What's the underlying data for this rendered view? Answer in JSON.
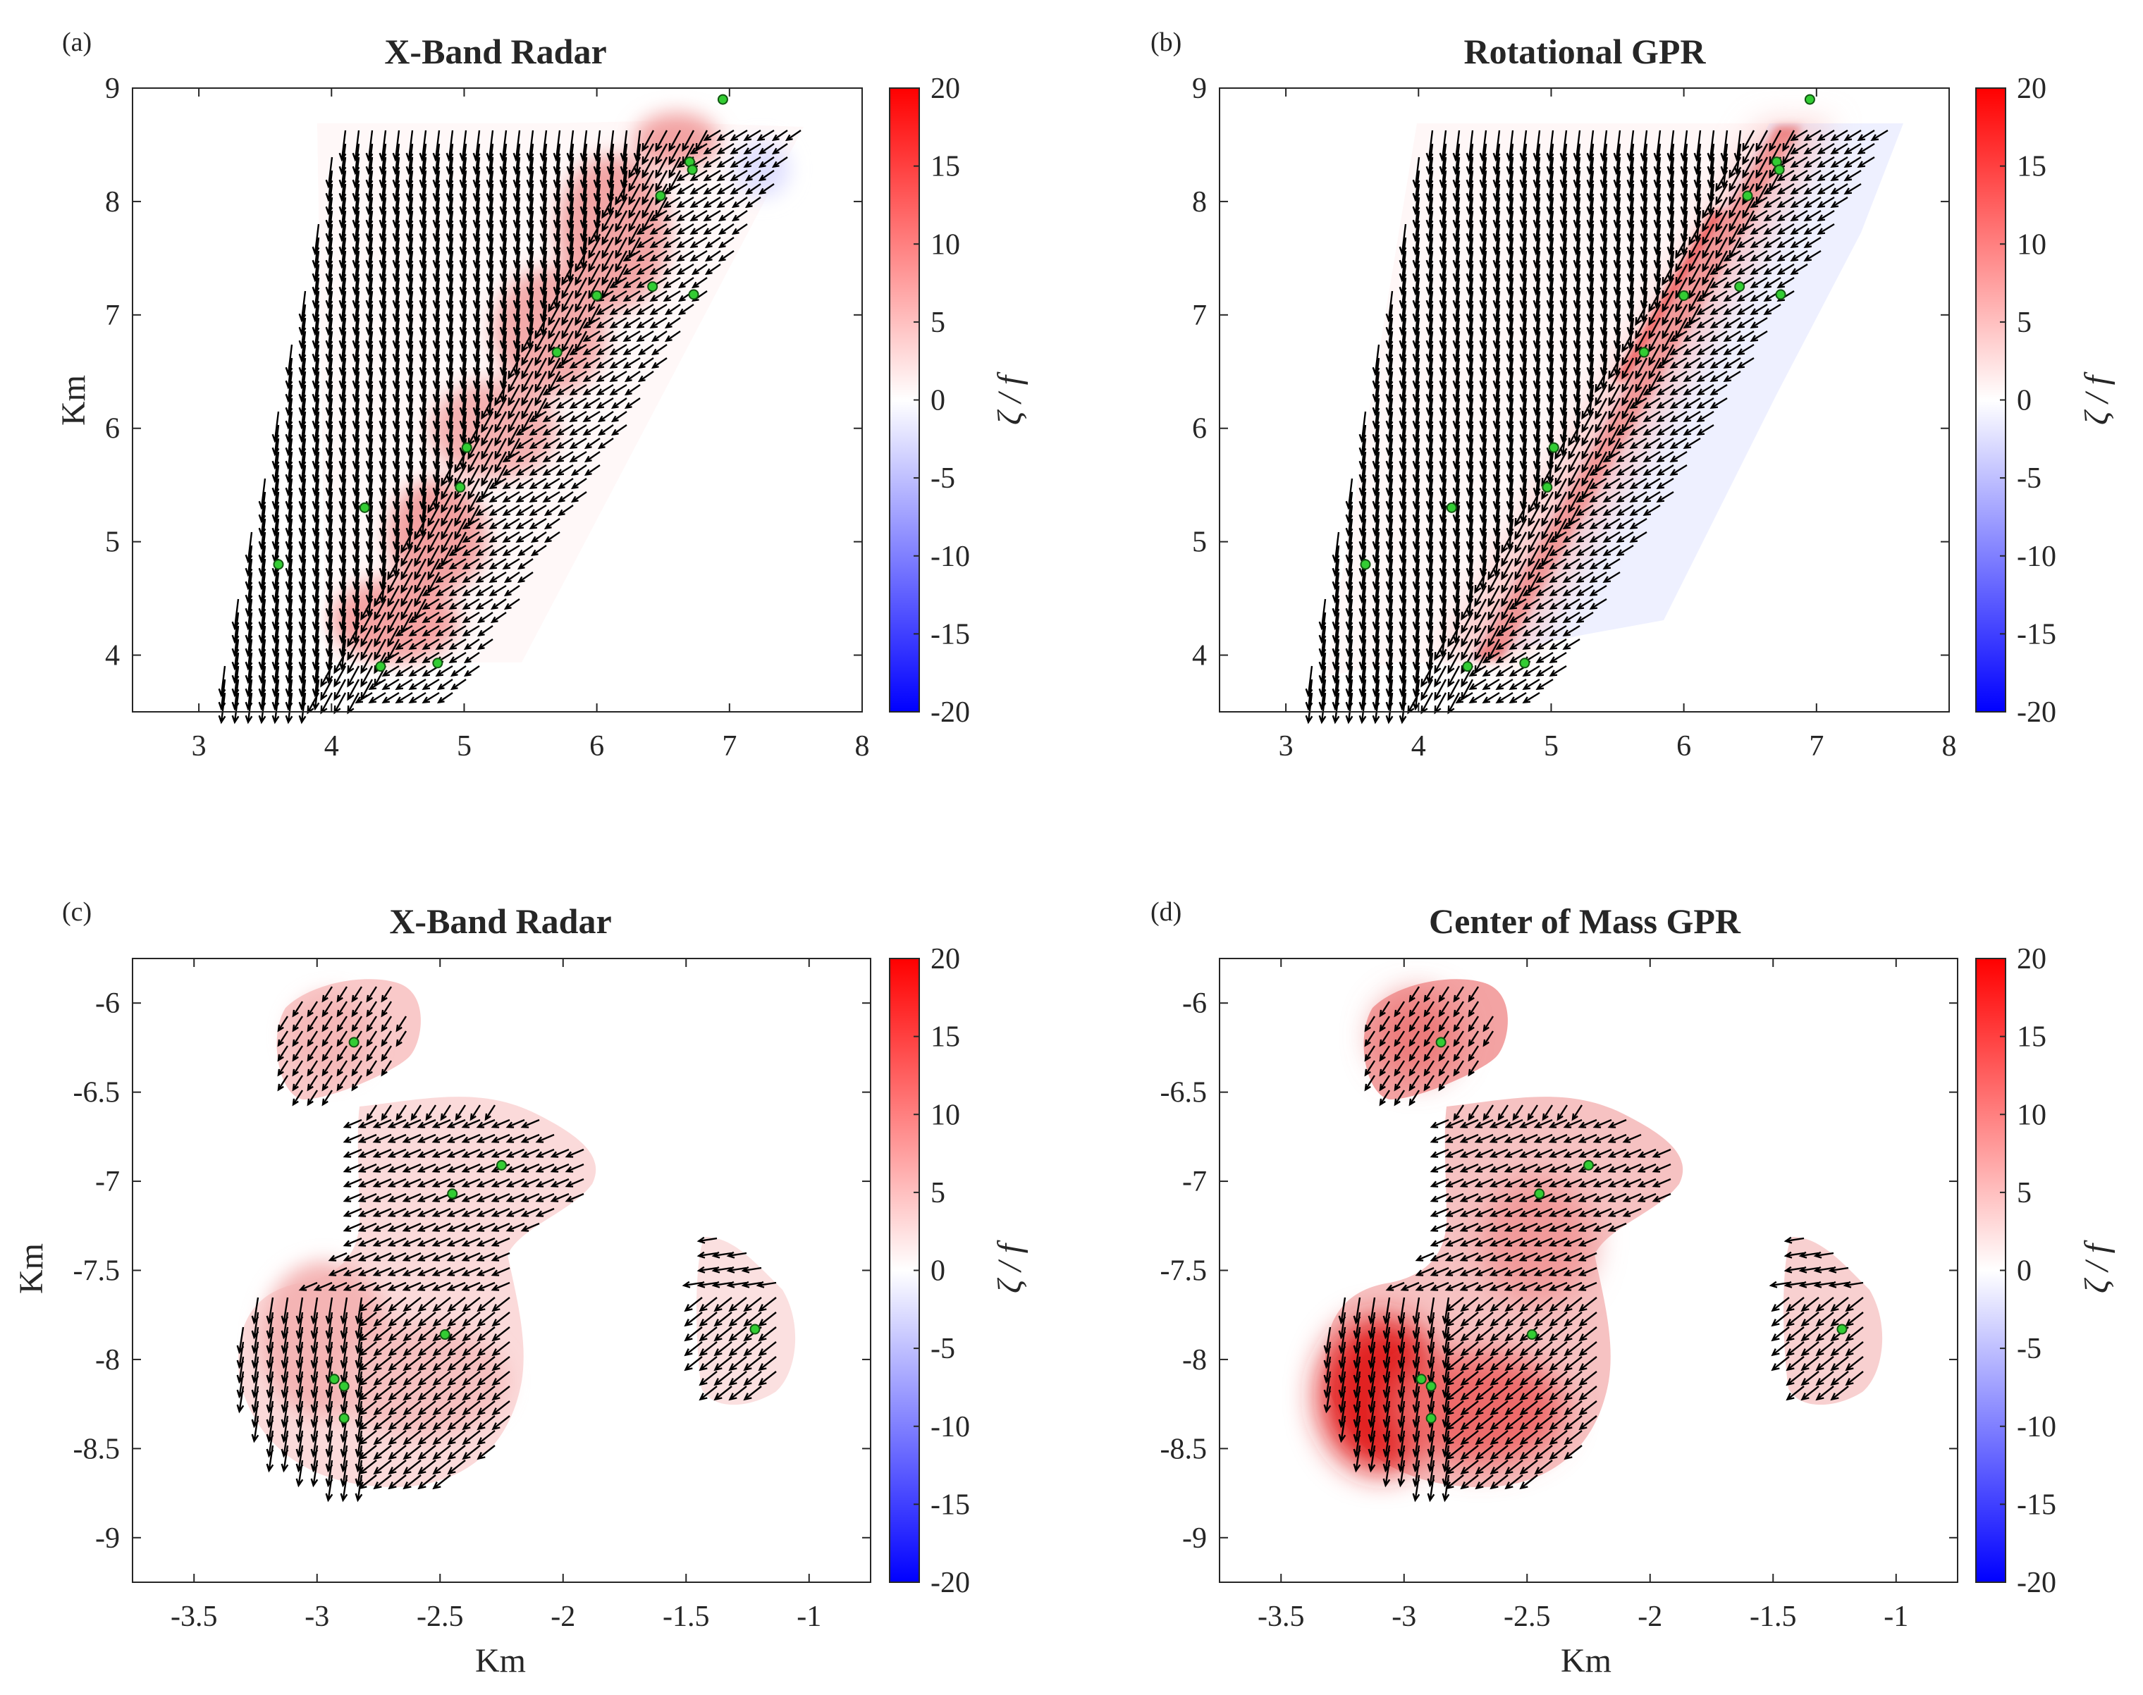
{
  "figure": {
    "panels": [
      {
        "label": "(a)",
        "title": "X-Band Radar",
        "ylabel": "Km",
        "xlabel": "",
        "cbar_label": "ζ / f"
      },
      {
        "label": "(b)",
        "title": "Rotational GPR",
        "ylabel": "",
        "xlabel": "",
        "cbar_label": "ζ / f"
      },
      {
        "label": "(c)",
        "title": "X-Band Radar",
        "ylabel": "Km",
        "xlabel": "Km",
        "cbar_label": "ζ / f"
      },
      {
        "label": "(d)",
        "title": "Center of Mass GPR",
        "ylabel": "",
        "xlabel": "Km",
        "cbar_label": "ζ / f"
      }
    ]
  },
  "colors": {
    "positive": "#ff0000",
    "negative": "#0000ff",
    "zero": "#ffffff",
    "arrow": "#000000",
    "drifter_fill": "#33cc33",
    "drifter_edge": "#115511"
  },
  "chart_data": [
    {
      "type": "quiver",
      "panel": "a",
      "title": "X-Band Radar",
      "xlim": [
        2.5,
        8
      ],
      "ylim": [
        3.5,
        9
      ],
      "xticks": [
        "3",
        "4",
        "5",
        "6",
        "7",
        "8"
      ],
      "yticks": [
        "4",
        "5",
        "6",
        "7",
        "8",
        "9"
      ],
      "xtick_values": [
        3,
        4,
        5,
        6,
        7,
        8
      ],
      "ytick_values": [
        4,
        5,
        6,
        7,
        8,
        9
      ],
      "ylabel": "Km",
      "colorbar": {
        "label": "ζ / f",
        "range": [
          -20,
          20
        ],
        "ticks": [
          "20",
          "15",
          "10",
          "5",
          "0",
          "-5",
          "-10",
          "-15",
          "-20"
        ],
        "tick_values": [
          20,
          15,
          10,
          5,
          0,
          -5,
          -10,
          -15,
          -20
        ]
      },
      "drifters": [
        [
          6.95,
          8.9
        ],
        [
          6.7,
          8.35
        ],
        [
          6.72,
          8.28
        ],
        [
          6.48,
          8.05
        ],
        [
          6.0,
          7.17
        ],
        [
          6.42,
          7.25
        ],
        [
          6.73,
          7.18
        ],
        [
          5.7,
          6.67
        ],
        [
          5.02,
          5.83
        ],
        [
          4.97,
          5.48
        ],
        [
          4.25,
          5.3
        ],
        [
          3.6,
          4.8
        ],
        [
          4.37,
          3.9
        ],
        [
          4.8,
          3.93
        ]
      ]
    },
    {
      "type": "quiver",
      "panel": "b",
      "title": "Rotational GPR",
      "xlim": [
        2.5,
        8
      ],
      "ylim": [
        3.5,
        9
      ],
      "xticks": [
        "3",
        "4",
        "5",
        "6",
        "7",
        "8"
      ],
      "yticks": [
        "4",
        "5",
        "6",
        "7",
        "8",
        "9"
      ],
      "xtick_values": [
        3,
        4,
        5,
        6,
        7,
        8
      ],
      "ytick_values": [
        4,
        5,
        6,
        7,
        8,
        9
      ],
      "colorbar": {
        "label": "ζ / f",
        "range": [
          -20,
          20
        ],
        "ticks": [
          "20",
          "15",
          "10",
          "5",
          "0",
          "-5",
          "-10",
          "-15",
          "-20"
        ],
        "tick_values": [
          20,
          15,
          10,
          5,
          0,
          -5,
          -10,
          -15,
          -20
        ]
      },
      "drifters": [
        [
          6.95,
          8.9
        ],
        [
          6.7,
          8.35
        ],
        [
          6.72,
          8.28
        ],
        [
          6.48,
          8.05
        ],
        [
          6.0,
          7.17
        ],
        [
          6.42,
          7.25
        ],
        [
          6.73,
          7.18
        ],
        [
          5.7,
          6.67
        ],
        [
          5.02,
          5.83
        ],
        [
          4.97,
          5.48
        ],
        [
          4.25,
          5.3
        ],
        [
          3.6,
          4.8
        ],
        [
          4.37,
          3.9
        ],
        [
          4.8,
          3.93
        ]
      ]
    },
    {
      "type": "quiver",
      "panel": "c",
      "title": "X-Band Radar",
      "xlim": [
        -3.75,
        -0.75
      ],
      "ylim": [
        -9.25,
        -5.75
      ],
      "xticks": [
        "-3.5",
        "-3",
        "-2.5",
        "-2",
        "-1.5",
        "-1"
      ],
      "yticks": [
        "-6",
        "-6.5",
        "-7",
        "-7.5",
        "-8",
        "-8.5",
        "-9"
      ],
      "xtick_values": [
        -3.5,
        -3,
        -2.5,
        -2,
        -1.5,
        -1
      ],
      "ytick_values": [
        -6,
        -6.5,
        -7,
        -7.5,
        -8,
        -8.5,
        -9
      ],
      "xlabel": "Km",
      "ylabel": "Km",
      "colorbar": {
        "label": "ζ / f",
        "range": [
          -20,
          20
        ],
        "ticks": [
          "20",
          "15",
          "10",
          "5",
          "0",
          "-5",
          "-10",
          "-15",
          "-20"
        ],
        "tick_values": [
          20,
          15,
          10,
          5,
          0,
          -5,
          -10,
          -15,
          -20
        ]
      },
      "drifters": [
        [
          -2.85,
          -6.22
        ],
        [
          -2.45,
          -7.07
        ],
        [
          -2.25,
          -6.91
        ],
        [
          -2.48,
          -7.86
        ],
        [
          -2.93,
          -8.11
        ],
        [
          -2.89,
          -8.15
        ],
        [
          -2.89,
          -8.33
        ],
        [
          -1.22,
          -7.83
        ]
      ]
    },
    {
      "type": "quiver",
      "panel": "d",
      "title": "Center of Mass GPR",
      "xlim": [
        -3.75,
        -0.75
      ],
      "ylim": [
        -9.25,
        -5.75
      ],
      "xticks": [
        "-3.5",
        "-3",
        "-2.5",
        "-2",
        "-1.5",
        "-1"
      ],
      "yticks": [
        "-6",
        "-6.5",
        "-7",
        "-7.5",
        "-8",
        "-8.5",
        "-9"
      ],
      "xtick_values": [
        -3.5,
        -3,
        -2.5,
        -2,
        -1.5,
        -1
      ],
      "ytick_values": [
        -6,
        -6.5,
        -7,
        -7.5,
        -8,
        -8.5,
        -9
      ],
      "xlabel": "Km",
      "colorbar": {
        "label": "ζ / f",
        "range": [
          -20,
          20
        ],
        "ticks": [
          "20",
          "15",
          "10",
          "5",
          "0",
          "-5",
          "-10",
          "-15",
          "-20"
        ],
        "tick_values": [
          20,
          15,
          10,
          5,
          0,
          -5,
          -10,
          -15,
          -20
        ]
      },
      "drifters": [
        [
          -2.85,
          -6.22
        ],
        [
          -2.45,
          -7.07
        ],
        [
          -2.25,
          -6.91
        ],
        [
          -2.48,
          -7.86
        ],
        [
          -2.93,
          -8.11
        ],
        [
          -2.89,
          -8.15
        ],
        [
          -2.89,
          -8.33
        ],
        [
          -1.22,
          -7.83
        ]
      ]
    }
  ]
}
